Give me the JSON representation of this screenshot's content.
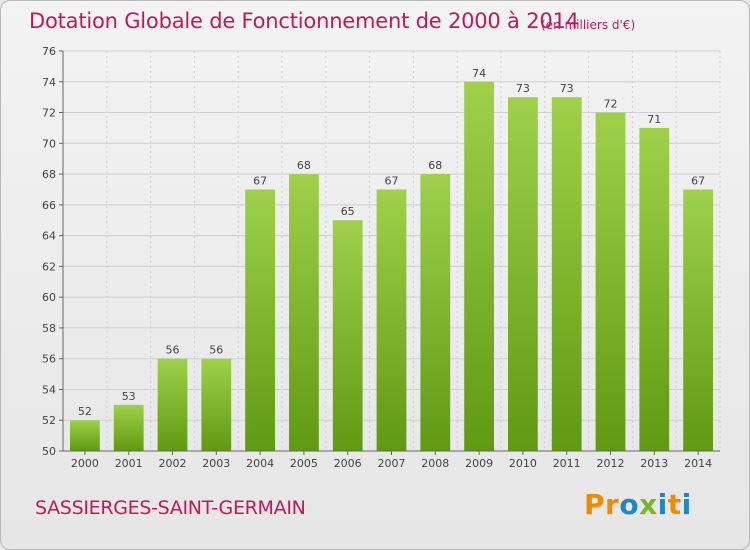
{
  "header": {
    "title": "Dotation Globale de Fonctionnement de 2000 à 2014",
    "unit": "(en milliers d'€)"
  },
  "footer": {
    "commune": "SASSIERGES-SAINT-GERMAIN",
    "logo_text": "Proxiti"
  },
  "colors": {
    "accent": "#c2185b",
    "bar_top": "#9fd14a",
    "bar_bottom": "#5f9a12",
    "grid": "#cfcfcf",
    "logo_letters": [
      "#f08a00",
      "#f08a00",
      "#1f86c8",
      "#7bb52a",
      "#1f86c8",
      "#f08a00",
      "#1f86c8"
    ]
  },
  "chart_data": {
    "type": "bar",
    "title": "Dotation Globale de Fonctionnement de 2000 à 2014",
    "subtitle": "(en milliers d'€)",
    "xlabel": "",
    "ylabel": "",
    "categories": [
      "2000",
      "2001",
      "2002",
      "2003",
      "2004",
      "2005",
      "2006",
      "2007",
      "2008",
      "2009",
      "2010",
      "2011",
      "2012",
      "2013",
      "2014"
    ],
    "values": [
      52,
      53,
      56,
      56,
      67,
      68,
      65,
      67,
      68,
      74,
      73,
      73,
      72,
      71,
      67
    ],
    "ylim": [
      50,
      76
    ],
    "yticks": [
      50,
      52,
      54,
      56,
      58,
      60,
      62,
      64,
      66,
      68,
      70,
      72,
      74,
      76
    ],
    "grid": true,
    "data_labels": true
  }
}
